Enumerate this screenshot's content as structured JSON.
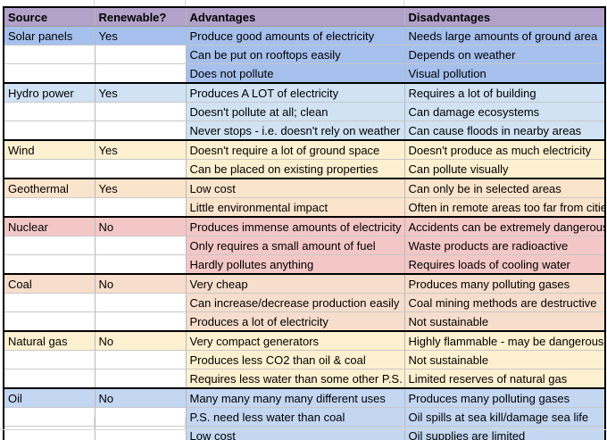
{
  "table": {
    "headers": [
      "Source",
      "Renewable?",
      "Advantages",
      "Disadvantages"
    ],
    "header_bg": "#b2a2ca",
    "grid_outer_color": "#000000",
    "grid_inner_color": "#c8c8c8",
    "faint_gridline_color": "#d9d9d9",
    "groups": [
      {
        "source": "Solar panels",
        "renewable": "Yes",
        "color": "#a6c0ee",
        "rows": [
          {
            "advantage": "Produce good amounts of electricity",
            "disadvantage": "Needs large amounts of ground area"
          },
          {
            "advantage": "Can be put on rooftops easily",
            "disadvantage": "Depends on weather"
          },
          {
            "advantage": "Does not pollute",
            "disadvantage": "Visual pollution"
          }
        ]
      },
      {
        "source": "Hydro power",
        "renewable": "Yes",
        "color": "#d0e2f3",
        "rows": [
          {
            "advantage": "Produces A LOT of electricity",
            "disadvantage": "Requires a lot of building"
          },
          {
            "advantage": "Doesn't pollute at all; clean",
            "disadvantage": "Can damage ecosystems"
          },
          {
            "advantage": "Never stops - i.e. doesn't rely on weather",
            "disadvantage": "Can cause floods in nearby areas"
          }
        ]
      },
      {
        "source": "Wind",
        "renewable": "Yes",
        "color": "#fdf0d0",
        "rows": [
          {
            "advantage": "Doesn't require a lot of ground space",
            "disadvantage": "Doesn't produce as much electricity"
          },
          {
            "advantage": "Can be placed on existing properties",
            "disadvantage": "Can pollute visually"
          }
        ]
      },
      {
        "source": "Geothermal",
        "renewable": "Yes",
        "color": "#fbe4cc",
        "rows": [
          {
            "advantage": "Low cost",
            "disadvantage": "Can only be in selected areas"
          },
          {
            "advantage": "Little environmental impact",
            "disadvantage": "Often in remote areas too far from cities"
          }
        ]
      },
      {
        "source": "Nuclear",
        "renewable": "No",
        "color": "#f4c7c7",
        "rows": [
          {
            "advantage": "Produces immense amounts of electricity",
            "disadvantage": "Accidents can be extremely dangerous"
          },
          {
            "advantage": "Only requires a small amount of fuel",
            "disadvantage": "Waste products are radioactive"
          },
          {
            "advantage": "Hardly pollutes anything",
            "disadvantage": "Requires loads of cooling water"
          }
        ]
      },
      {
        "source": "Coal",
        "renewable": "No",
        "color": "#f7ddcb",
        "rows": [
          {
            "advantage": "Very cheap",
            "disadvantage": "Produces many polluting gases"
          },
          {
            "advantage": "Can increase/decrease production easily",
            "disadvantage": "Coal mining methods are destructive"
          },
          {
            "advantage": "Produces a lot of electricity",
            "disadvantage": "Not sustainable"
          }
        ]
      },
      {
        "source": "Natural gas",
        "renewable": "No",
        "color": "#fdf0d0",
        "rows": [
          {
            "advantage": "Very compact generators",
            "disadvantage": "Highly flammable - may be dangerous"
          },
          {
            "advantage": "Produces less CO2 than oil & coal",
            "disadvantage": "Not sustainable"
          },
          {
            "advantage": "Requires less water than some other P.S.",
            "disadvantage": "Limited reserves of natural gas"
          }
        ]
      },
      {
        "source": "Oil",
        "renewable": "No",
        "color": "#c3d6f2",
        "rows": [
          {
            "advantage": "Many many many many different uses",
            "disadvantage": "Produces many polluting gases"
          },
          {
            "advantage": "P.S. need less water than coal",
            "disadvantage": "Oil spills at sea kill/damage sea life"
          },
          {
            "advantage": "Low cost",
            "disadvantage": "Oil supplies are limited"
          }
        ]
      }
    ]
  }
}
